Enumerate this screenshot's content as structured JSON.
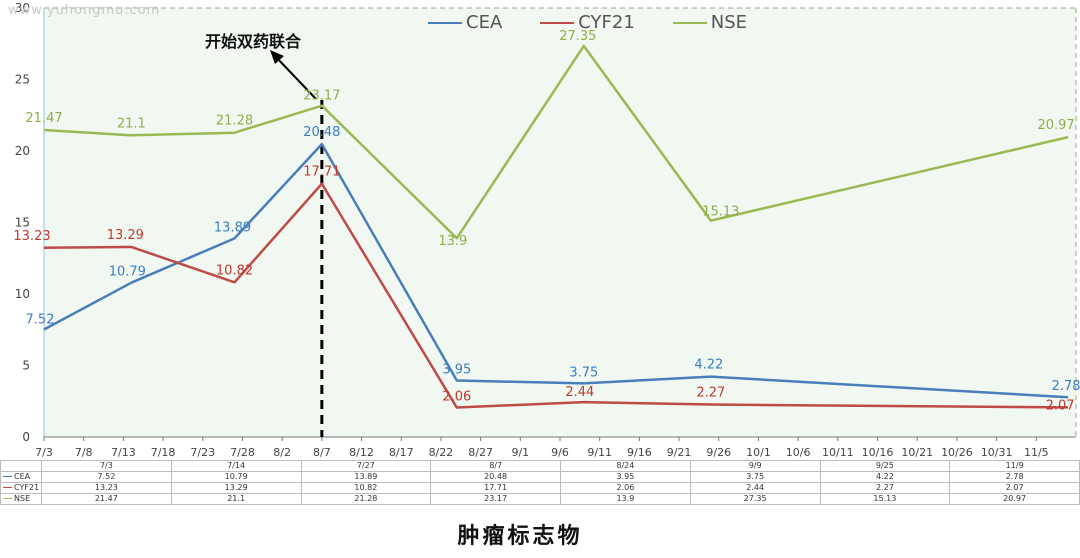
{
  "watermark": "www.yuhongmu.com",
  "annotation": "开始双药联合",
  "caption": "肿瘤标志物",
  "chart_data": {
    "type": "line",
    "x_axis_labels": [
      "7/3",
      "7/8",
      "7/13",
      "7/18",
      "7/23",
      "7/28",
      "8/2",
      "8/7",
      "8/12",
      "8/17",
      "8/22",
      "8/27",
      "9/1",
      "9/6",
      "9/11",
      "9/16",
      "9/21",
      "9/26",
      "10/1",
      "10/6",
      "10/11",
      "10/16",
      "10/21",
      "10/26",
      "10/31",
      "11/5"
    ],
    "y_ticks": [
      0,
      5,
      10,
      15,
      20,
      25,
      30
    ],
    "ylim": [
      0,
      30
    ],
    "grid": false,
    "legend_position": "top",
    "marker_date": "8/7",
    "series": [
      {
        "name": "CEA",
        "color": "#4a7ebb",
        "label_color": "#3b7cc4",
        "points": [
          {
            "x": "7/3",
            "y": 7.52
          },
          {
            "x": "7/14",
            "y": 10.79
          },
          {
            "x": "7/27",
            "y": 13.89
          },
          {
            "x": "8/7",
            "y": 20.48
          },
          {
            "x": "8/24",
            "y": 3.95
          },
          {
            "x": "9/9",
            "y": 3.75
          },
          {
            "x": "9/25",
            "y": 4.22
          },
          {
            "x": "11/9",
            "y": 2.78
          }
        ]
      },
      {
        "name": "CYF21",
        "color": "#be4b48",
        "label_color": "#c0392b",
        "points": [
          {
            "x": "7/3",
            "y": 13.23
          },
          {
            "x": "7/14",
            "y": 13.29
          },
          {
            "x": "7/27",
            "y": 10.82
          },
          {
            "x": "8/7",
            "y": 17.71
          },
          {
            "x": "8/24",
            "y": 2.06
          },
          {
            "x": "9/9",
            "y": 2.44
          },
          {
            "x": "9/25",
            "y": 2.27
          },
          {
            "x": "11/9",
            "y": 2.07
          }
        ]
      },
      {
        "name": "NSE",
        "color": "#98b954",
        "label_color": "#8bb04a",
        "points": [
          {
            "x": "7/3",
            "y": 21.47
          },
          {
            "x": "7/14",
            "y": 21.1
          },
          {
            "x": "7/27",
            "y": 21.28
          },
          {
            "x": "8/7",
            "y": 23.17
          },
          {
            "x": "8/24",
            "y": 13.9
          },
          {
            "x": "9/9",
            "y": 27.35
          },
          {
            "x": "9/25",
            "y": 15.13
          },
          {
            "x": "11/9",
            "y": 20.97
          }
        ]
      }
    ]
  },
  "table": {
    "headers": [
      "7/3",
      "7/14",
      "7/27",
      "8/7",
      "8/24",
      "9/9",
      "9/25",
      "11/9"
    ],
    "rows": [
      {
        "name": "CEA",
        "values": [
          "7.52",
          "10.79",
          "13.89",
          "20.48",
          "3.95",
          "3.75",
          "4.22",
          "2.78"
        ]
      },
      {
        "name": "CYF21",
        "values": [
          "13.23",
          "13.29",
          "10.82",
          "17.71",
          "2.06",
          "2.44",
          "2.27",
          "2.07"
        ]
      },
      {
        "name": "NSE",
        "values": [
          "21.47",
          "21.1",
          "21.28",
          "23.17",
          "13.9",
          "27.35",
          "15.13",
          "20.97"
        ]
      }
    ]
  }
}
